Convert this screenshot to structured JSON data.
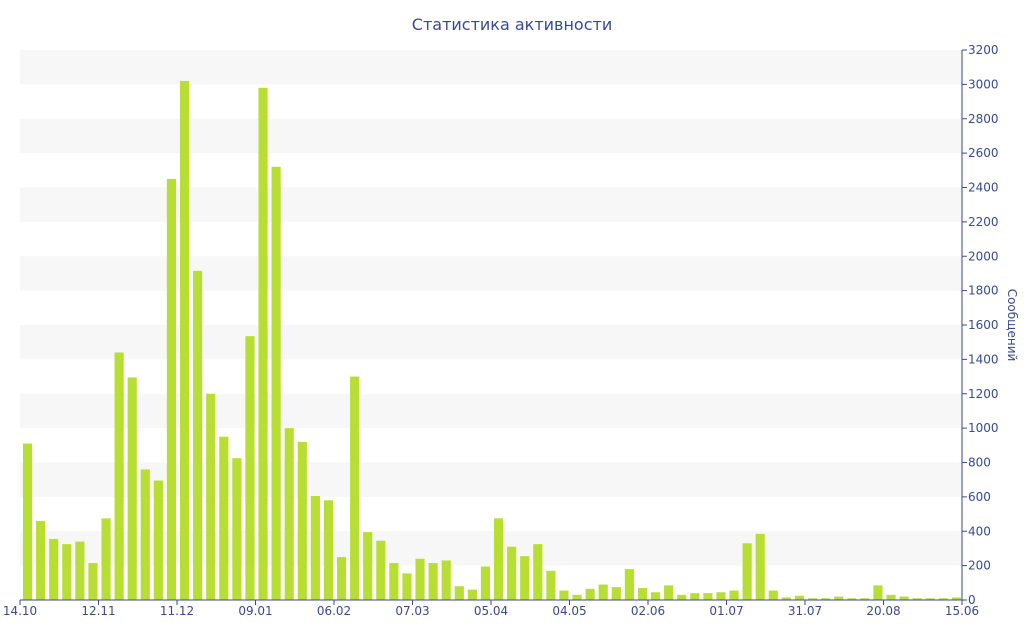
{
  "chart_data": {
    "type": "bar",
    "title": "Статистика активности",
    "xlabel": "",
    "ylabel": "Сообщений",
    "ylim": [
      0,
      3200
    ],
    "yticks": [
      0,
      200,
      400,
      600,
      800,
      1000,
      1200,
      1400,
      1600,
      1800,
      2000,
      2200,
      2400,
      2600,
      2800,
      3000,
      3200
    ],
    "xtick_labels": [
      {
        "index": 0,
        "label": "14.10"
      },
      {
        "index": 6,
        "label": "12.11"
      },
      {
        "index": 12,
        "label": "11.12"
      },
      {
        "index": 18,
        "label": "09.01"
      },
      {
        "index": 24,
        "label": "06.02"
      },
      {
        "index": 30,
        "label": "07.03"
      },
      {
        "index": 36,
        "label": "05.04"
      },
      {
        "index": 42,
        "label": "04.05"
      },
      {
        "index": 48,
        "label": "02.06"
      },
      {
        "index": 54,
        "label": "01.07"
      },
      {
        "index": 60,
        "label": "31.07"
      },
      {
        "index": 66,
        "label": "20.08"
      },
      {
        "index": 72,
        "label": "15.06"
      }
    ],
    "values": [
      910,
      460,
      355,
      325,
      340,
      215,
      475,
      1440,
      1295,
      760,
      695,
      2450,
      3020,
      1915,
      1200,
      950,
      825,
      1535,
      2980,
      2520,
      1000,
      920,
      605,
      580,
      250,
      1300,
      395,
      345,
      215,
      155,
      240,
      215,
      230,
      80,
      60,
      195,
      475,
      310,
      255,
      325,
      170,
      55,
      30,
      65,
      90,
      75,
      180,
      70,
      45,
      85,
      30,
      40,
      40,
      45,
      55,
      330,
      385,
      55,
      15,
      25,
      10,
      10,
      20,
      10,
      10,
      85,
      30,
      20,
      10,
      10,
      10,
      15
    ],
    "grid": "horizontal alternating bands",
    "colors": {
      "bar": "#b8de34",
      "axis": "#3a4a8c",
      "band": "#f7f7f7"
    }
  }
}
